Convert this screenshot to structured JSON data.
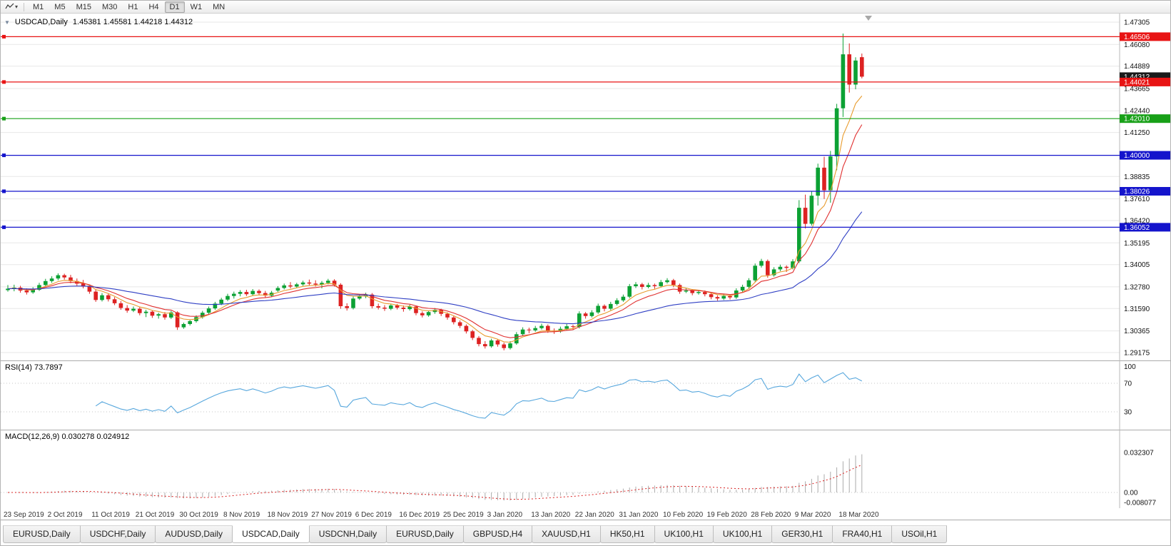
{
  "toolbar": {
    "dropdown_icon": "▾",
    "timeframes": [
      "M1",
      "M5",
      "M15",
      "M30",
      "H1",
      "H4",
      "D1",
      "W1",
      "MN"
    ],
    "active_timeframe": "D1"
  },
  "chart": {
    "title": {
      "collapse_icon": "▼",
      "symbol": "USDCAD,Daily",
      "ohlc": "1.45381 1.45581 1.44218 1.44312"
    },
    "current_price": 1.44312,
    "current_price_label": "1.44312",
    "price_axis": {
      "min": 1.29175,
      "max": 1.47305,
      "ticks": [
        1.47305,
        1.4608,
        1.44889,
        1.43665,
        1.4244,
        1.4125,
        1.38835,
        1.3761,
        1.3642,
        1.35195,
        1.34005,
        1.3278,
        1.3159,
        1.30365,
        1.29175
      ]
    },
    "levels": [
      {
        "price": 1.46506,
        "label": "1.46506",
        "color": "#e81414"
      },
      {
        "price": 1.44021,
        "label": "1.44021",
        "color": "#e81414"
      },
      {
        "price": 1.4201,
        "label": "1.42010",
        "color": "#18a018"
      },
      {
        "price": 1.4,
        "label": "1.40000",
        "color": "#1414cc"
      },
      {
        "price": 1.38026,
        "label": "1.38026",
        "color": "#1414cc"
      },
      {
        "price": 1.36052,
        "label": "1.36052",
        "color": "#1414cc"
      }
    ],
    "moving_averages": [
      {
        "name": "fast",
        "period": 6,
        "color": "#e89b2d"
      },
      {
        "name": "medium",
        "period": 10,
        "color": "#e03030"
      },
      {
        "name": "slow",
        "period": 34,
        "color": "#2f3fc4"
      }
    ],
    "colors": {
      "up": "#0ca134",
      "down": "#dd2222",
      "grid": "#e7e7e7",
      "current_badge": "#1a1a1a",
      "axis_line": "#b8b8b8",
      "shift_marker": "#a8a8a8"
    },
    "date_labels": [
      {
        "i": 0,
        "label": "23 Sep 2019"
      },
      {
        "i": 7,
        "label": "2 Oct 2019"
      },
      {
        "i": 14,
        "label": "11 Oct 2019"
      },
      {
        "i": 21,
        "label": "21 Oct 2019"
      },
      {
        "i": 28,
        "label": "30 Oct 2019"
      },
      {
        "i": 35,
        "label": "8 Nov 2019"
      },
      {
        "i": 42,
        "label": "18 Nov 2019"
      },
      {
        "i": 49,
        "label": "27 Nov 2019"
      },
      {
        "i": 56,
        "label": "6 Dec 2019"
      },
      {
        "i": 63,
        "label": "16 Dec 2019"
      },
      {
        "i": 70,
        "label": "25 Dec 2019"
      },
      {
        "i": 77,
        "label": "3 Jan 2020"
      },
      {
        "i": 84,
        "label": "13 Jan 2020"
      },
      {
        "i": 91,
        "label": "22 Jan 2020"
      },
      {
        "i": 98,
        "label": "31 Jan 2020"
      },
      {
        "i": 105,
        "label": "10 Feb 2020"
      },
      {
        "i": 112,
        "label": "19 Feb 2020"
      },
      {
        "i": 119,
        "label": "28 Feb 2020"
      },
      {
        "i": 126,
        "label": "9 Mar 2020"
      },
      {
        "i": 133,
        "label": "18 Mar 2020"
      }
    ],
    "chart_data": {
      "type": "candlestick",
      "symbol": "USDCAD",
      "timeframe": "Daily",
      "ohlc": [
        [
          1.326,
          1.3288,
          1.3252,
          1.3268
        ],
        [
          1.3268,
          1.329,
          1.3254,
          1.3274
        ],
        [
          1.3274,
          1.3284,
          1.3246,
          1.3258
        ],
        [
          1.3258,
          1.327,
          1.3236,
          1.3248
        ],
        [
          1.3248,
          1.3276,
          1.324,
          1.3262
        ],
        [
          1.3262,
          1.33,
          1.3256,
          1.3288
        ],
        [
          1.3288,
          1.3322,
          1.328,
          1.331
        ],
        [
          1.331,
          1.3336,
          1.33,
          1.3324
        ],
        [
          1.3324,
          1.3352,
          1.3314,
          1.3342
        ],
        [
          1.3342,
          1.335,
          1.3318,
          1.333
        ],
        [
          1.333,
          1.3344,
          1.3298,
          1.331
        ],
        [
          1.331,
          1.3324,
          1.3284,
          1.3296
        ],
        [
          1.3296,
          1.3316,
          1.327,
          1.328
        ],
        [
          1.328,
          1.329,
          1.324,
          1.3252
        ],
        [
          1.3252,
          1.3262,
          1.3196,
          1.3206
        ],
        [
          1.3206,
          1.3244,
          1.3198,
          1.3232
        ],
        [
          1.3232,
          1.324,
          1.3198,
          1.321
        ],
        [
          1.321,
          1.3222,
          1.3178,
          1.3188
        ],
        [
          1.3188,
          1.32,
          1.3152,
          1.3162
        ],
        [
          1.3162,
          1.3178,
          1.3136,
          1.3148
        ],
        [
          1.3148,
          1.317,
          1.314,
          1.3158
        ],
        [
          1.3158,
          1.3166,
          1.3122,
          1.3134
        ],
        [
          1.3134,
          1.3152,
          1.3112,
          1.3142
        ],
        [
          1.3142,
          1.315,
          1.3108,
          1.312
        ],
        [
          1.312,
          1.3136,
          1.3104,
          1.3128
        ],
        [
          1.3128,
          1.314,
          1.3098,
          1.311
        ],
        [
          1.311,
          1.3146,
          1.3102,
          1.3138
        ],
        [
          1.3138,
          1.3144,
          1.3042,
          1.3056
        ],
        [
          1.3056,
          1.3082,
          1.3048,
          1.3074
        ],
        [
          1.3074,
          1.3098,
          1.3066,
          1.309
        ],
        [
          1.309,
          1.3122,
          1.3082,
          1.3112
        ],
        [
          1.3112,
          1.3146,
          1.3104,
          1.3136
        ],
        [
          1.3136,
          1.317,
          1.3128,
          1.316
        ],
        [
          1.316,
          1.3196,
          1.3152,
          1.3186
        ],
        [
          1.3186,
          1.3218,
          1.3178,
          1.3208
        ],
        [
          1.3208,
          1.324,
          1.32,
          1.3228
        ],
        [
          1.3228,
          1.3252,
          1.3214,
          1.324
        ],
        [
          1.324,
          1.326,
          1.3226,
          1.325
        ],
        [
          1.325,
          1.3262,
          1.3228,
          1.3238
        ],
        [
          1.3238,
          1.3266,
          1.323,
          1.3256
        ],
        [
          1.3256,
          1.3264,
          1.3232,
          1.3244
        ],
        [
          1.3244,
          1.3256,
          1.3218,
          1.323
        ],
        [
          1.323,
          1.3256,
          1.3222,
          1.3246
        ],
        [
          1.3258,
          1.3282,
          1.325,
          1.3272
        ],
        [
          1.3272,
          1.3296,
          1.3264,
          1.3286
        ],
        [
          1.3286,
          1.3304,
          1.327,
          1.328
        ],
        [
          1.328,
          1.33,
          1.3272,
          1.3292
        ],
        [
          1.3292,
          1.3312,
          1.3284,
          1.3302
        ],
        [
          1.3302,
          1.3318,
          1.3286,
          1.3296
        ],
        [
          1.3296,
          1.3314,
          1.328,
          1.329
        ],
        [
          1.329,
          1.331,
          1.327,
          1.33
        ],
        [
          1.33,
          1.3322,
          1.3292,
          1.3312
        ],
        [
          1.3312,
          1.332,
          1.328,
          1.329
        ],
        [
          1.329,
          1.3298,
          1.3158,
          1.3172
        ],
        [
          1.3172,
          1.3188,
          1.3148,
          1.3162
        ],
        [
          1.3162,
          1.3226,
          1.3154,
          1.3214
        ],
        [
          1.3214,
          1.3238,
          1.3206,
          1.3226
        ],
        [
          1.3226,
          1.3246,
          1.3216,
          1.3236
        ],
        [
          1.3236,
          1.3244,
          1.316,
          1.3172
        ],
        [
          1.3172,
          1.3186,
          1.3154,
          1.3164
        ],
        [
          1.3164,
          1.3178,
          1.3146,
          1.3158
        ],
        [
          1.3158,
          1.3186,
          1.315,
          1.3176
        ],
        [
          1.3176,
          1.3184,
          1.3154,
          1.3164
        ],
        [
          1.3164,
          1.3176,
          1.3142,
          1.3156
        ],
        [
          1.3156,
          1.318,
          1.3148,
          1.317
        ],
        [
          1.317,
          1.3176,
          1.3122,
          1.3134
        ],
        [
          1.3134,
          1.3144,
          1.311,
          1.3122
        ],
        [
          1.3122,
          1.3148,
          1.3114,
          1.314
        ],
        [
          1.314,
          1.3162,
          1.313,
          1.3152
        ],
        [
          1.3152,
          1.3158,
          1.3118,
          1.313
        ],
        [
          1.313,
          1.3138,
          1.3098,
          1.311
        ],
        [
          1.311,
          1.3118,
          1.3072,
          1.3084
        ],
        [
          1.3084,
          1.3094,
          1.3052,
          1.3064
        ],
        [
          1.3064,
          1.3072,
          1.3022,
          1.3034
        ],
        [
          1.3034,
          1.3042,
          1.2986,
          1.2998
        ],
        [
          1.2998,
          1.3008,
          1.2952,
          1.2964
        ],
        [
          1.2964,
          1.298,
          1.294,
          1.2952
        ],
        [
          1.2952,
          1.2994,
          1.2944,
          1.2984
        ],
        [
          1.2984,
          1.2992,
          1.295,
          1.2962
        ],
        [
          1.2962,
          1.2972,
          1.293,
          1.2942
        ],
        [
          1.2942,
          1.298,
          1.2934,
          1.2968
        ],
        [
          1.2968,
          1.303,
          1.296,
          1.3018
        ],
        [
          1.3018,
          1.3056,
          1.301,
          1.3044
        ],
        [
          1.3044,
          1.3054,
          1.3024,
          1.304
        ],
        [
          1.304,
          1.3064,
          1.3032,
          1.3052
        ],
        [
          1.3052,
          1.3076,
          1.3044,
          1.3064
        ],
        [
          1.3064,
          1.3072,
          1.3026,
          1.3038
        ],
        [
          1.3038,
          1.305,
          1.302,
          1.3034
        ],
        [
          1.3034,
          1.306,
          1.3026,
          1.3048
        ],
        [
          1.3048,
          1.3074,
          1.304,
          1.3062
        ],
        [
          1.3062,
          1.307,
          1.3044,
          1.3058
        ],
        [
          1.3058,
          1.3144,
          1.305,
          1.3132
        ],
        [
          1.3132,
          1.314,
          1.3104,
          1.3118
        ],
        [
          1.3118,
          1.315,
          1.311,
          1.3138
        ],
        [
          1.3138,
          1.3186,
          1.313,
          1.3174
        ],
        [
          1.3174,
          1.3182,
          1.3144,
          1.3158
        ],
        [
          1.3158,
          1.3196,
          1.315,
          1.3184
        ],
        [
          1.3184,
          1.3216,
          1.3176,
          1.3204
        ],
        [
          1.3204,
          1.3236,
          1.3196,
          1.3224
        ],
        [
          1.3224,
          1.3294,
          1.3216,
          1.3282
        ],
        [
          1.3282,
          1.3304,
          1.3272,
          1.3292
        ],
        [
          1.3292,
          1.33,
          1.3264,
          1.3278
        ],
        [
          1.3278,
          1.33,
          1.327,
          1.3288
        ],
        [
          1.3288,
          1.3296,
          1.3268,
          1.3282
        ],
        [
          1.3282,
          1.3316,
          1.3274,
          1.3304
        ],
        [
          1.3304,
          1.3326,
          1.3296,
          1.3314
        ],
        [
          1.3314,
          1.3322,
          1.3276,
          1.3288
        ],
        [
          1.3288,
          1.3296,
          1.324,
          1.3252
        ],
        [
          1.3252,
          1.327,
          1.3244,
          1.3258
        ],
        [
          1.3258,
          1.3266,
          1.3232,
          1.3244
        ],
        [
          1.3244,
          1.3262,
          1.3236,
          1.325
        ],
        [
          1.325,
          1.3258,
          1.3226,
          1.3238
        ],
        [
          1.3238,
          1.3246,
          1.321,
          1.3222
        ],
        [
          1.3222,
          1.3232,
          1.3202,
          1.3214
        ],
        [
          1.3214,
          1.324,
          1.3206,
          1.3228
        ],
        [
          1.3228,
          1.3236,
          1.3208,
          1.322
        ],
        [
          1.322,
          1.327,
          1.3212,
          1.3258
        ],
        [
          1.3258,
          1.329,
          1.325,
          1.3278
        ],
        [
          1.3278,
          1.3326,
          1.327,
          1.3314
        ],
        [
          1.3314,
          1.3406,
          1.3306,
          1.3394
        ],
        [
          1.3394,
          1.3432,
          1.3384,
          1.342
        ],
        [
          1.342,
          1.3428,
          1.3328,
          1.3342
        ],
        [
          1.3342,
          1.3386,
          1.3334,
          1.3374
        ],
        [
          1.3374,
          1.34,
          1.3364,
          1.3388
        ],
        [
          1.3388,
          1.3396,
          1.336,
          1.3382
        ],
        [
          1.3382,
          1.343,
          1.3374,
          1.3418
        ],
        [
          1.3418,
          1.3754,
          1.3408,
          1.3712
        ],
        [
          1.3712,
          1.3784,
          1.3598,
          1.3624
        ],
        [
          1.3624,
          1.3802,
          1.3614,
          1.3778
        ],
        [
          1.3778,
          1.3954,
          1.3724,
          1.3932
        ],
        [
          1.3932,
          1.3992,
          1.376,
          1.3808
        ],
        [
          1.3808,
          1.4024,
          1.374,
          1.3994
        ],
        [
          1.3994,
          1.4282,
          1.3918,
          1.4258
        ],
        [
          1.4258,
          1.4668,
          1.421,
          1.4554
        ],
        [
          1.4554,
          1.4614,
          1.4344,
          1.4388
        ],
        [
          1.4388,
          1.4538,
          1.4362,
          1.452
        ],
        [
          1.45381,
          1.45581,
          1.44218,
          1.44312
        ]
      ]
    }
  },
  "rsi": {
    "label": "RSI(14)",
    "value": "73.7897",
    "period": 14,
    "color": "#57a7dd",
    "levels": [
      {
        "v": 100,
        "label": "100"
      },
      {
        "v": 70,
        "label": "70"
      },
      {
        "v": 30,
        "label": "30"
      }
    ]
  },
  "macd": {
    "label": "MACD(12,26,9)",
    "values": "0.030278 0.024912",
    "fast": 12,
    "slow": 26,
    "signal_period": 9,
    "histogram_color": "#ababab",
    "signal_color": "#d82020",
    "axis_ticks": [
      {
        "v": 0.032307,
        "label": "0.032307"
      },
      {
        "v": 0,
        "label": "0.00"
      },
      {
        "v": -0.008077,
        "label": "-0.008077"
      }
    ]
  },
  "tabs": [
    "EURUSD,Daily",
    "USDCHF,Daily",
    "AUDUSD,Daily",
    "USDCAD,Daily",
    "USDCNH,Daily",
    "EURUSD,Daily",
    "GBPUSD,H4",
    "XAUUSD,H1",
    "HK50,H1",
    "UK100,H1",
    "UK100,H1",
    "GER30,H1",
    "FRA40,H1",
    "USOil,H1"
  ],
  "active_tab_index": 3
}
